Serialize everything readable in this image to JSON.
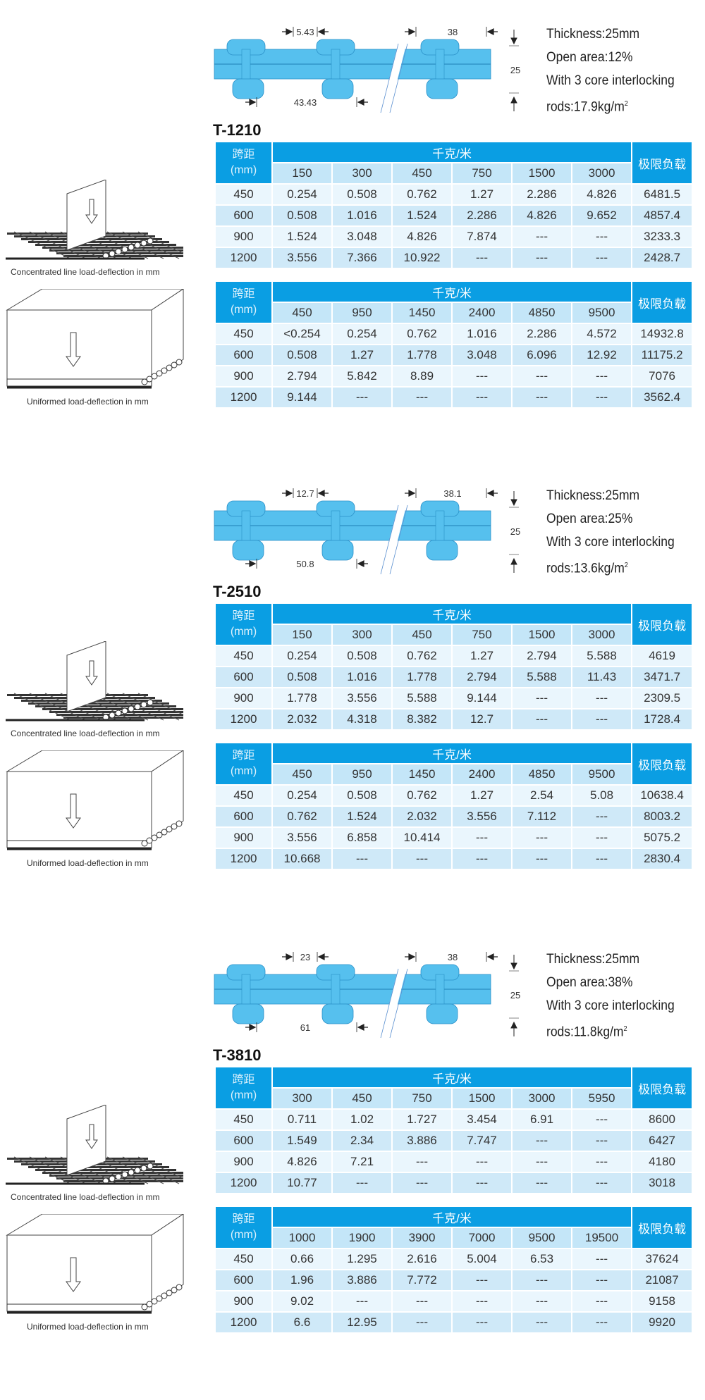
{
  "colors": {
    "header_blue": "#0a9ee3",
    "subheader": "#c4e6f8",
    "row_light": "#eaf6fd",
    "row_dark": "#cfe9f8",
    "profile_blue": "#56c0ee"
  },
  "captions": {
    "line": "Concentrated line load-deflection in mm",
    "uniform": "Uniformed load-deflection in mm"
  },
  "headers": {
    "span": [
      "跨距",
      "(mm)"
    ],
    "load": "千克/米",
    "limit": "极限负载"
  },
  "sections": [
    {
      "model": "T-1210",
      "dims": {
        "gap": "5.43",
        "pitch": "38",
        "bar_span": "43.43",
        "thickness": "25"
      },
      "specs": {
        "thickness": "Thickness:25mm",
        "open_area": "Open area:12%",
        "core": "With 3 core interlocking",
        "rods": "rods:17.9kg/m",
        "rods_sup": "2"
      },
      "tables": [
        {
          "loads": [
            "150",
            "300",
            "450",
            "750",
            "1500",
            "3000"
          ],
          "rows": [
            {
              "span": "450",
              "values": [
                "0.254",
                "0.508",
                "0.762",
                "1.27",
                "2.286",
                "4.826"
              ],
              "limit": "6481.5"
            },
            {
              "span": "600",
              "values": [
                "0.508",
                "1.016",
                "1.524",
                "2.286",
                "4.826",
                "9.652"
              ],
              "limit": "4857.4"
            },
            {
              "span": "900",
              "values": [
                "1.524",
                "3.048",
                "4.826",
                "7.874",
                "---",
                "---"
              ],
              "limit": "3233.3"
            },
            {
              "span": "1200",
              "values": [
                "3.556",
                "7.366",
                "10.922",
                "---",
                "---",
                "---"
              ],
              "limit": "2428.7"
            }
          ]
        },
        {
          "loads": [
            "450",
            "950",
            "1450",
            "2400",
            "4850",
            "9500"
          ],
          "rows": [
            {
              "span": "450",
              "values": [
                "<0.254",
                "0.254",
                "0.762",
                "1.016",
                "2.286",
                "4.572"
              ],
              "limit": "14932.8"
            },
            {
              "span": "600",
              "values": [
                "0.508",
                "1.27",
                "1.778",
                "3.048",
                "6.096",
                "12.92"
              ],
              "limit": "11175.2"
            },
            {
              "span": "900",
              "values": [
                "2.794",
                "5.842",
                "8.89",
                "---",
                "---",
                "---"
              ],
              "limit": "7076"
            },
            {
              "span": "1200",
              "values": [
                "9.144",
                "---",
                "---",
                "---",
                "---",
                "---"
              ],
              "limit": "3562.4"
            }
          ]
        }
      ]
    },
    {
      "model": "T-2510",
      "dims": {
        "gap": "12.7",
        "pitch": "38.1",
        "bar_span": "50.8",
        "thickness": "25"
      },
      "specs": {
        "thickness": "Thickness:25mm",
        "open_area": "Open area:25%",
        "core": "With 3 core interlocking",
        "rods": "rods:13.6kg/m",
        "rods_sup": "2"
      },
      "tables": [
        {
          "loads": [
            "150",
            "300",
            "450",
            "750",
            "1500",
            "3000"
          ],
          "rows": [
            {
              "span": "450",
              "values": [
                "0.254",
                "0.508",
                "0.762",
                "1.27",
                "2.794",
                "5.588"
              ],
              "limit": "4619"
            },
            {
              "span": "600",
              "values": [
                "0.508",
                "1.016",
                "1.778",
                "2.794",
                "5.588",
                "11.43"
              ],
              "limit": "3471.7"
            },
            {
              "span": "900",
              "values": [
                "1.778",
                "3.556",
                "5.588",
                "9.144",
                "---",
                "---"
              ],
              "limit": "2309.5"
            },
            {
              "span": "1200",
              "values": [
                "2.032",
                "4.318",
                "8.382",
                "12.7",
                "---",
                "---"
              ],
              "limit": "1728.4"
            }
          ]
        },
        {
          "loads": [
            "450",
            "950",
            "1450",
            "2400",
            "4850",
            "9500"
          ],
          "rows": [
            {
              "span": "450",
              "values": [
                "0.254",
                "0.508",
                "0.762",
                "1.27",
                "2.54",
                "5.08"
              ],
              "limit": "10638.4"
            },
            {
              "span": "600",
              "values": [
                "0.762",
                "1.524",
                "2.032",
                "3.556",
                "7.112",
                "---"
              ],
              "limit": "8003.2"
            },
            {
              "span": "900",
              "values": [
                "3.556",
                "6.858",
                "10.414",
                "---",
                "---",
                "---"
              ],
              "limit": "5075.2"
            },
            {
              "span": "1200",
              "values": [
                "10.668",
                "---",
                "---",
                "---",
                "---",
                "---"
              ],
              "limit": "2830.4"
            }
          ]
        }
      ]
    },
    {
      "model": "T-3810",
      "dims": {
        "gap": "23",
        "pitch": "38",
        "bar_span": "61",
        "thickness": "25"
      },
      "specs": {
        "thickness": "Thickness:25mm",
        "open_area": "Open area:38%",
        "core": "With 3 core interlocking",
        "rods": "rods:11.8kg/m",
        "rods_sup": "2"
      },
      "tables": [
        {
          "loads": [
            "300",
            "450",
            "750",
            "1500",
            "3000",
            "5950"
          ],
          "rows": [
            {
              "span": "450",
              "values": [
                "0.711",
                "1.02",
                "1.727",
                "3.454",
                "6.91",
                "---"
              ],
              "limit": "8600"
            },
            {
              "span": "600",
              "values": [
                "1.549",
                "2.34",
                "3.886",
                "7.747",
                "---",
                "---"
              ],
              "limit": "6427"
            },
            {
              "span": "900",
              "values": [
                "4.826",
                "7.21",
                "---",
                "---",
                "---",
                "---"
              ],
              "limit": "4180"
            },
            {
              "span": "1200",
              "values": [
                "10.77",
                "---",
                "---",
                "---",
                "---",
                "---"
              ],
              "limit": "3018"
            }
          ]
        },
        {
          "loads": [
            "1000",
            "1900",
            "3900",
            "7000",
            "9500",
            "19500"
          ],
          "rows": [
            {
              "span": "450",
              "values": [
                "0.66",
                "1.295",
                "2.616",
                "5.004",
                "6.53",
                "---"
              ],
              "limit": "37624"
            },
            {
              "span": "600",
              "values": [
                "1.96",
                "3.886",
                "7.772",
                "---",
                "---",
                "---"
              ],
              "limit": "21087"
            },
            {
              "span": "900",
              "values": [
                "9.02",
                "---",
                "---",
                "---",
                "---",
                "---"
              ],
              "limit": "9158"
            },
            {
              "span": "1200",
              "values": [
                "6.6",
                "12.95",
                "---",
                "---",
                "---",
                "---"
              ],
              "limit": "9920"
            }
          ]
        }
      ]
    }
  ]
}
